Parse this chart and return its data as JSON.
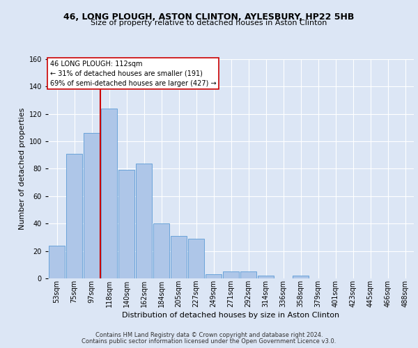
{
  "title1": "46, LONG PLOUGH, ASTON CLINTON, AYLESBURY, HP22 5HB",
  "title2": "Size of property relative to detached houses in Aston Clinton",
  "xlabel": "Distribution of detached houses by size in Aston Clinton",
  "ylabel": "Number of detached properties",
  "footer1": "Contains HM Land Registry data © Crown copyright and database right 2024.",
  "footer2": "Contains public sector information licensed under the Open Government Licence v3.0.",
  "annotation_line1": "46 LONG PLOUGH: 112sqm",
  "annotation_line2": "← 31% of detached houses are smaller (191)",
  "annotation_line3": "69% of semi-detached houses are larger (427) →",
  "bar_categories": [
    "53sqm",
    "75sqm",
    "97sqm",
    "118sqm",
    "140sqm",
    "162sqm",
    "184sqm",
    "205sqm",
    "227sqm",
    "249sqm",
    "271sqm",
    "292sqm",
    "314sqm",
    "336sqm",
    "358sqm",
    "379sqm",
    "401sqm",
    "423sqm",
    "445sqm",
    "466sqm",
    "488sqm"
  ],
  "bar_values": [
    24,
    91,
    106,
    124,
    79,
    84,
    40,
    31,
    29,
    3,
    5,
    5,
    2,
    0,
    2,
    0,
    0,
    0,
    0,
    0,
    0
  ],
  "bar_color": "#aec6e8",
  "bar_edge_color": "#5b9bd5",
  "vline_color": "#cc0000",
  "vline_x_idx": 2.5,
  "background_color": "#dce6f5",
  "plot_bg_color": "#dce6f5",
  "ylim": [
    0,
    160
  ],
  "yticks": [
    0,
    20,
    40,
    60,
    80,
    100,
    120,
    140,
    160
  ],
  "grid_color": "#ffffff",
  "annotation_box_facecolor": "#ffffff",
  "annotation_box_edgecolor": "#cc0000",
  "title1_fontsize": 9,
  "title2_fontsize": 8,
  "xlabel_fontsize": 8,
  "ylabel_fontsize": 8,
  "tick_fontsize": 7,
  "footer_fontsize": 6,
  "annotation_fontsize": 7
}
